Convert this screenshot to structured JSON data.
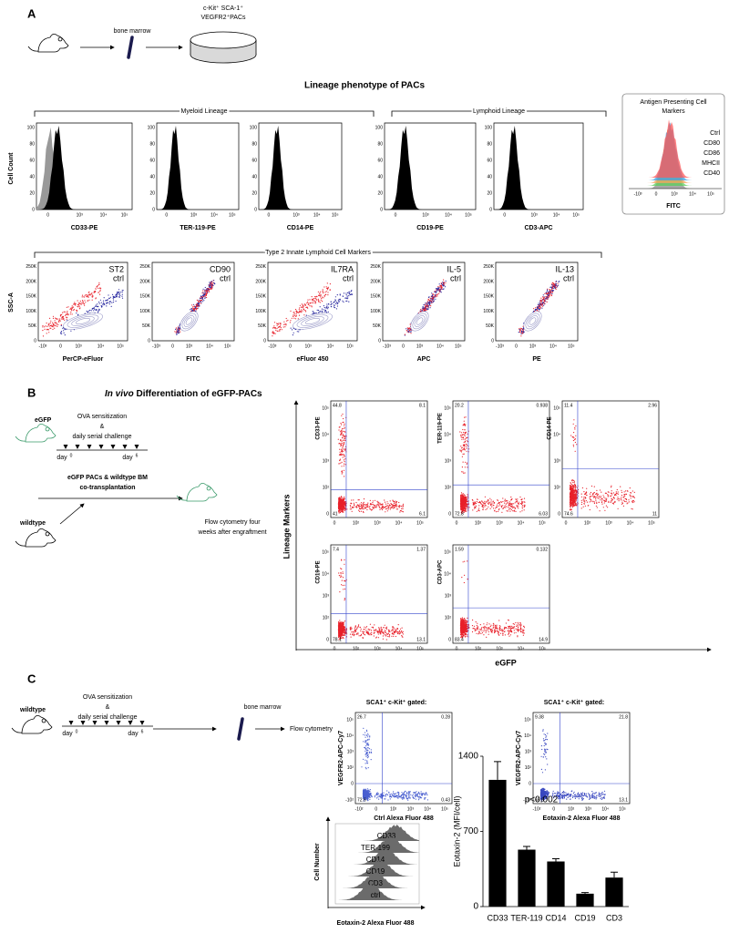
{
  "panel_a": {
    "label": "A",
    "bone_marrow": "bone marrow",
    "cells": [
      "c-Kit⁺ SCA-1⁺",
      "VEGFR2⁺PACs"
    ],
    "title": "Lineage phenotype of PACs",
    "myeloid": "Myeloid Lineage",
    "lymphoid": "Lymphoid Lineage",
    "hist_ylabel": "Cell Count",
    "hist_yticks": [
      "0",
      "20",
      "40",
      "60",
      "80",
      "100"
    ],
    "log_ticks": [
      "0",
      "10³",
      "10⁴",
      "10⁵"
    ],
    "histograms": [
      "CD33-PE",
      "TER-119-PE",
      "CD14-PE",
      "CD19-PE",
      "CD3-APC"
    ],
    "apc": {
      "title": [
        "Antigen Presenting Cell",
        "Markers"
      ],
      "xlabel": "FITC",
      "xticks": [
        "-10³",
        "0",
        "10³",
        "10⁴",
        "10⁵"
      ],
      "legend": [
        {
          "name": "Ctrl",
          "color": "#ff5a5a"
        },
        {
          "name": "CD80",
          "color": "#3aa0e6"
        },
        {
          "name": "CD86",
          "color": "#f4a460"
        },
        {
          "name": "MHCII",
          "color": "#5ccf5c"
        },
        {
          "name": "CD40",
          "color": "#8c8c8c"
        }
      ]
    },
    "ilc_title": "Type 2 Innate Lymphoid Cell Markers",
    "ssc_label": "SSC-A",
    "ssc_ticks": [
      "0",
      "50K",
      "100K",
      "150K",
      "200K",
      "250K"
    ],
    "scatter_xticks": [
      "-10³",
      "0",
      "10³",
      "10⁴",
      "10⁵"
    ],
    "scatters": [
      {
        "marker": "ST2",
        "ctrl": "ctrl",
        "xlabel": "PerCP-eFluor"
      },
      {
        "marker": "CD90",
        "ctrl": "ctrl",
        "xlabel": "FITC"
      },
      {
        "marker": "IL7RA",
        "ctrl": "ctrl",
        "xlabel": "eFluor 450"
      },
      {
        "marker": "IL-5",
        "ctrl": "ctrl",
        "xlabel": "APC"
      },
      {
        "marker": "IL-13",
        "ctrl": "ctrl",
        "xlabel": "PE"
      }
    ]
  },
  "panel_b": {
    "label": "B",
    "title_italic": "In vivo",
    "title_rest": "Differentiation of eGFP-PACs",
    "donor": "eGFP",
    "ova": [
      "OVA sensitization",
      "&",
      "daily serial challenge"
    ],
    "day": "day",
    "day_start": "0",
    "day_end": "6",
    "transplant": [
      "eGFP PACs & wildtype BM",
      "co-transplantation"
    ],
    "recipient": "wildtype",
    "readout": [
      "Flow cytometry four",
      "weeks after engraftment"
    ],
    "ylabel": "Lineage Markers",
    "xlabel": "eGFP",
    "plot_ticks": [
      "0",
      "10²",
      "10³",
      "10⁴",
      "10⁵"
    ],
    "plots": [
      {
        "ylabel": "CD33-PE",
        "quadrants": [
          "44.8",
          "8.1",
          "41",
          "6.1"
        ]
      },
      {
        "ylabel": "TER-119-PE",
        "quadrants": [
          "20.2",
          "0.938",
          "72.8",
          "6.03"
        ]
      },
      {
        "ylabel": "CD14-PE",
        "quadrants": [
          "11.4",
          "2.96",
          "74.6",
          "11"
        ]
      },
      {
        "ylabel": "CD19-PE",
        "quadrants": [
          "7.4",
          "1.37",
          "78.1",
          "13.1"
        ]
      },
      {
        "ylabel": "CD3-APC",
        "quadrants": [
          "1.59",
          "0.132",
          "83.4",
          "14.9"
        ]
      }
    ]
  },
  "panel_c": {
    "label": "C",
    "mouse": "wildtype",
    "ova": [
      "OVA sensitization",
      "&",
      "daily serial challenge"
    ],
    "day": "day",
    "day_start": "0",
    "day_end": "6",
    "bone_marrow": "bone marrow",
    "flow": "Flow cytometry",
    "ylabel": "VEGFR2-APC-Cy7",
    "plot_ticks": [
      "-10²",
      "0",
      "10²",
      "10³",
      "10⁴",
      "10⁵"
    ],
    "plots": [
      {
        "gate": "SCA1⁺ c-Kit⁺ gated:",
        "xlabel": "Ctrl Alexa Fluor 488",
        "quadrants": [
          "26.7",
          "0.28",
          "72.6",
          "0.43"
        ]
      },
      {
        "gate": "SCA1⁺ c-Kit⁺ gated:",
        "xlabel": "Eotaxin-2 Alexa Fluor 488",
        "quadrants": [
          "9.38",
          "21.8",
          "65.8",
          "13.1"
        ]
      }
    ],
    "ridge": {
      "labels": [
        "CD33",
        "TER-199",
        "CD14",
        "CD19",
        "CD3",
        "ctrl"
      ],
      "ylabel": "Cell Number",
      "xlabel": "Eotaxin-2 Alexa Fluor 488"
    }
  },
  "chart_data": {
    "type": "bar",
    "ylabel": "Eotaxin-2 (MFI/cell)",
    "annotation": "p<0.002",
    "categories": [
      "CD33",
      "TER-119",
      "CD14",
      "CD19",
      "CD3"
    ],
    "values": [
      1180,
      530,
      420,
      120,
      270
    ],
    "errors": [
      170,
      30,
      25,
      10,
      50
    ],
    "color": "#000000",
    "ylim": [
      0,
      1400
    ],
    "yticks": [
      0,
      700,
      1400
    ]
  }
}
